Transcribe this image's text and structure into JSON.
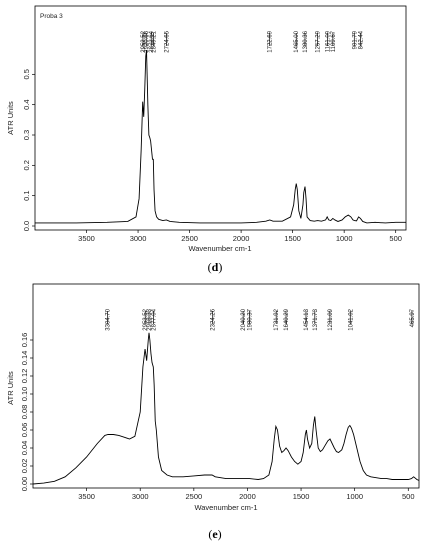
{
  "chart_data": [
    {
      "id": "d",
      "type": "line",
      "title": "Proba 3",
      "xlabel": "Wavenumber cm-1",
      "ylabel": "ATR Units",
      "xlim": [
        4000,
        400
      ],
      "ylim": [
        0,
        0.6
      ],
      "x_ticks": [
        3500,
        3000,
        2500,
        2000,
        1500,
        1000,
        500
      ],
      "y_ticks": [
        0.0,
        0.1,
        0.2,
        0.3,
        0.4,
        0.5
      ],
      "peak_labels": [
        "2952.52",
        "2920.66",
        "2872.64",
        "2849.21",
        "2724.65",
        "1722.69",
        "1465.00",
        "1380.36",
        "1257.29",
        "1161.09",
        "1109.67",
        "901.79",
        "842.44"
      ],
      "peak_positions": [
        2952.52,
        2920.66,
        2872.64,
        2849.21,
        2724.65,
        1722.69,
        1465.0,
        1380.36,
        1257.29,
        1161.09,
        1109.67,
        901.79,
        842.44
      ],
      "series": [
        {
          "x": [
            4000,
            3600,
            3300,
            3100,
            3020,
            2990,
            2970,
            2955,
            2945,
            2935,
            2925,
            2918,
            2912,
            2905,
            2895,
            2885,
            2878,
            2872,
            2866,
            2860,
            2852,
            2845,
            2835,
            2820,
            2800,
            2760,
            2725,
            2690,
            2600,
            2400,
            2200,
            2000,
            1850,
            1760,
            1722,
            1690,
            1600,
            1520,
            1490,
            1475,
            1465,
            1455,
            1440,
            1420,
            1400,
            1392,
            1380,
            1370,
            1360,
            1330,
            1290,
            1257,
            1220,
            1180,
            1165,
            1150,
            1130,
            1110,
            1090,
            1060,
            1020,
            990,
            960,
            935,
            915,
            900,
            880,
            860,
            842,
            820,
            780,
            700,
            600,
            500,
            400
          ],
          "y": [
            0.01,
            0.01,
            0.012,
            0.015,
            0.03,
            0.09,
            0.25,
            0.41,
            0.36,
            0.45,
            0.56,
            0.58,
            0.5,
            0.4,
            0.3,
            0.29,
            0.28,
            0.26,
            0.24,
            0.22,
            0.22,
            0.12,
            0.05,
            0.03,
            0.022,
            0.018,
            0.02,
            0.015,
            0.012,
            0.01,
            0.01,
            0.01,
            0.012,
            0.016,
            0.02,
            0.016,
            0.016,
            0.03,
            0.07,
            0.12,
            0.14,
            0.12,
            0.05,
            0.025,
            0.07,
            0.11,
            0.13,
            0.09,
            0.03,
            0.018,
            0.016,
            0.018,
            0.016,
            0.02,
            0.03,
            0.02,
            0.018,
            0.025,
            0.02,
            0.015,
            0.02,
            0.03,
            0.036,
            0.03,
            0.02,
            0.018,
            0.017,
            0.03,
            0.025,
            0.015,
            0.01,
            0.012,
            0.01,
            0.012,
            0.012
          ]
        }
      ]
    },
    {
      "id": "e",
      "type": "line",
      "title": "",
      "xlabel": "Wavenumber cm-1",
      "ylabel": "ATR Units",
      "xlim": [
        4000,
        400
      ],
      "ylim": [
        0,
        0.18
      ],
      "x_ticks": [
        3500,
        3000,
        2500,
        2000,
        1500,
        1000,
        500
      ],
      "y_ticks": [
        0.0,
        0.02,
        0.04,
        0.06,
        0.08,
        0.1,
        0.12,
        0.14,
        0.16
      ],
      "peak_labels": [
        "3304.70",
        "2953.52",
        "2918.33",
        "2877.04",
        "2324.26",
        "2040.20",
        "1980.37",
        "1731.92",
        "1640.29",
        "1454.13",
        "1371.73",
        "1231.09",
        "1041.02",
        "465.97"
      ],
      "peak_positions": [
        3304.7,
        2953.52,
        2918.33,
        2877.04,
        2324.26,
        2040.2,
        1980.37,
        1731.92,
        1640.29,
        1454.13,
        1371.73,
        1231.09,
        1041.02,
        465.97
      ],
      "series": [
        {
          "x": [
            4000,
            3900,
            3800,
            3700,
            3600,
            3500,
            3400,
            3330,
            3300,
            3250,
            3200,
            3150,
            3100,
            3050,
            3000,
            2975,
            2955,
            2940,
            2925,
            2918,
            2910,
            2900,
            2890,
            2878,
            2870,
            2860,
            2850,
            2830,
            2800,
            2750,
            2700,
            2650,
            2600,
            2500,
            2400,
            2330,
            2300,
            2200,
            2100,
            2040,
            1980,
            1900,
            1850,
            1800,
            1770,
            1750,
            1735,
            1720,
            1700,
            1680,
            1660,
            1640,
            1620,
            1590,
            1560,
            1530,
            1500,
            1480,
            1460,
            1450,
            1440,
            1420,
            1400,
            1385,
            1372,
            1360,
            1340,
            1320,
            1300,
            1280,
            1250,
            1230,
            1210,
            1190,
            1170,
            1150,
            1120,
            1100,
            1080,
            1060,
            1045,
            1030,
            1010,
            990,
            970,
            950,
            920,
            890,
            850,
            800,
            750,
            700,
            650,
            600,
            550,
            500,
            470,
            450,
            420,
            400
          ],
          "y": [
            0.0,
            0.001,
            0.003,
            0.008,
            0.018,
            0.03,
            0.045,
            0.054,
            0.055,
            0.055,
            0.054,
            0.052,
            0.05,
            0.053,
            0.08,
            0.13,
            0.15,
            0.137,
            0.16,
            0.168,
            0.16,
            0.145,
            0.135,
            0.13,
            0.11,
            0.07,
            0.06,
            0.03,
            0.015,
            0.01,
            0.008,
            0.008,
            0.008,
            0.009,
            0.01,
            0.01,
            0.008,
            0.006,
            0.006,
            0.006,
            0.006,
            0.005,
            0.006,
            0.01,
            0.025,
            0.05,
            0.064,
            0.06,
            0.042,
            0.035,
            0.037,
            0.04,
            0.037,
            0.03,
            0.025,
            0.022,
            0.025,
            0.035,
            0.055,
            0.06,
            0.05,
            0.04,
            0.045,
            0.065,
            0.075,
            0.06,
            0.04,
            0.036,
            0.038,
            0.042,
            0.048,
            0.05,
            0.045,
            0.04,
            0.036,
            0.035,
            0.038,
            0.045,
            0.055,
            0.063,
            0.065,
            0.062,
            0.055,
            0.045,
            0.035,
            0.025,
            0.015,
            0.01,
            0.008,
            0.007,
            0.006,
            0.006,
            0.005,
            0.005,
            0.005,
            0.005,
            0.006,
            0.008,
            0.005,
            0.004
          ]
        }
      ]
    }
  ],
  "captions": {
    "d": "(d)",
    "e": "(e)"
  }
}
